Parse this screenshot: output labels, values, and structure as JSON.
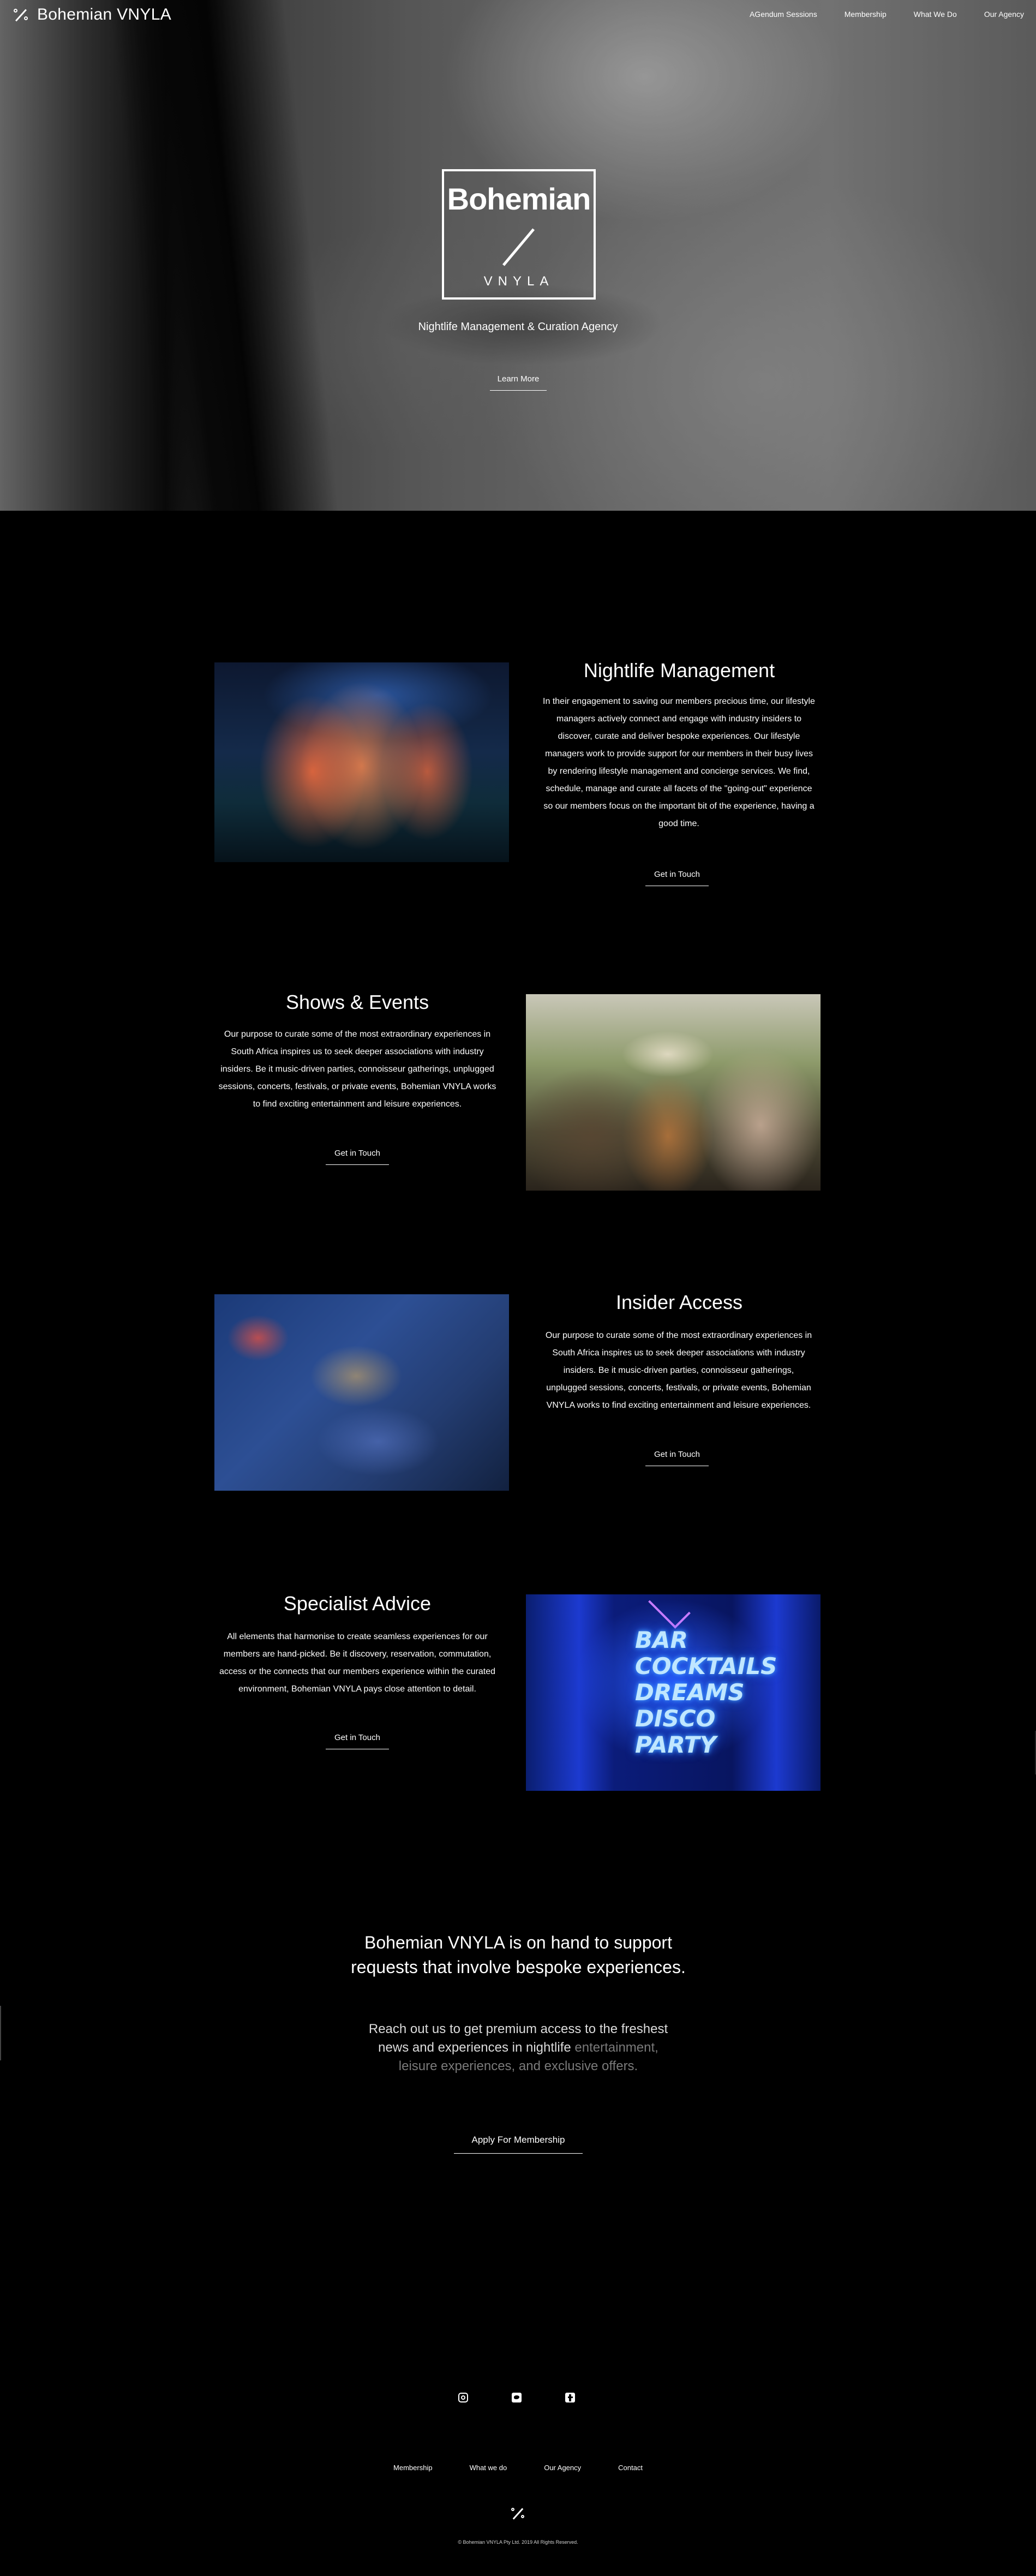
{
  "header": {
    "brand": "Bohemian VNYLA",
    "nav": [
      "AGendum Sessions",
      "Membership",
      "What We Do",
      "Our Agency"
    ]
  },
  "hero": {
    "logo_title": "Bohemian",
    "logo_sub": "VNYLA",
    "tagline": "Nightlife Management & Curation Agency",
    "cta": "Learn More"
  },
  "sections": [
    {
      "title": "Nightlife Management",
      "body": "In their engagement to saving our members precious time, our lifestyle managers actively connect and engage with industry insiders to discover, curate and deliver bespoke experiences. Our lifestyle managers work to provide support for our members in their busy lives by rendering lifestyle management and concierge services. We find, schedule, manage and curate all facets of the \"going-out\" experience so our members focus on the important bit of the experience, having a good time.",
      "cta": "Get in Touch"
    },
    {
      "title": "Shows & Events",
      "body": "Our purpose to curate some of the most extraordinary experiences in South Africa inspires us to seek deeper associations with industry insiders. Be it music-driven parties, connoisseur gatherings, unplugged sessions, concerts, festivals, or private events, Bohemian VNYLA works to find exciting entertainment and leisure experiences.",
      "cta": "Get in Touch"
    },
    {
      "title": "Insider Access",
      "body": "Our purpose to curate some of the most extraordinary experiences in South Africa inspires us to seek deeper associations with industry insiders. Be it music-driven parties, connoisseur gatherings, unplugged sessions, concerts, festivals, or private events, Bohemian VNYLA works to find exciting entertainment and leisure experiences.",
      "cta": "Get in Touch"
    },
    {
      "title": "Specialist Advice",
      "body": "All elements that harmonise to create seamless experiences for our members are hand-picked. Be it discovery, reservation, commutation, access or the connects that our members experience within the curated environment, Bohemian VNYLA pays close attention to detail.",
      "cta": "Get in Touch"
    }
  ],
  "neon_sign": {
    "lines": [
      "BAR",
      "COCKTAILS",
      "DREAMS",
      "DISCO",
      "PARTY"
    ]
  },
  "contact": {
    "heading": "Bohemian VNYLA is on hand to support requests that involve bespoke experiences.",
    "sub_main": "Reach out us to get premium access to the freshest news and experiences in nightlife",
    "sub_fade": "entertainment, leisure experiences, and exclusive offers.",
    "cta": "Apply For Membership"
  },
  "footer": {
    "socials": [
      "instagram-icon",
      "twitter-icon",
      "facebook-icon"
    ],
    "links": [
      "Membership",
      "What we do",
      "Our Agency",
      "Contact"
    ],
    "copyright": "© Bohemian VNYLA Pty Ltd. 2019 All Rights Reserved."
  }
}
